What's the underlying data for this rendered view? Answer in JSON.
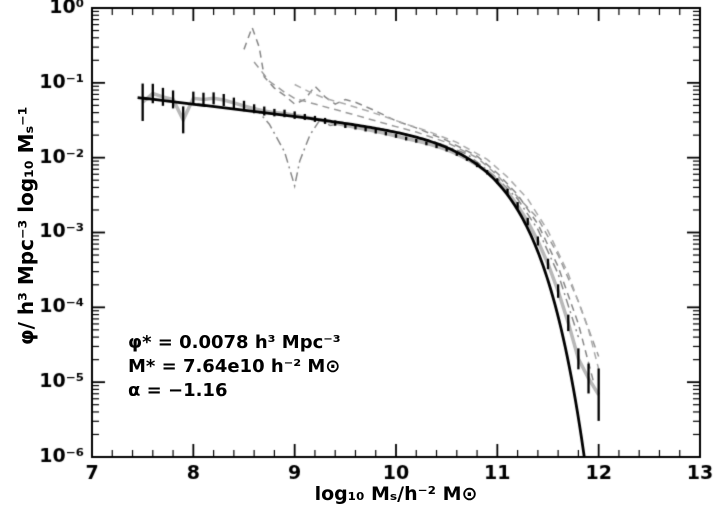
{
  "figure": {
    "background": "#ffffff",
    "axis_color": "#000000"
  },
  "annotation": {
    "phi_star": "φ* = 0.0078 h³ Mpc⁻³",
    "m_star": "M* = 7.64e10 h⁻² M⊙",
    "alpha": "α = −1.16"
  },
  "chart_data": {
    "type": "line",
    "title": "",
    "xlabel": "log₁₀ Mₛ/h⁻² M⊙",
    "ylabel": "φ/ h³ Mpc⁻³ log₁₀ Mₛ⁻¹",
    "xlim": [
      7,
      13
    ],
    "ylim": [
      1e-06,
      1
    ],
    "y_scale": "log",
    "grid": false,
    "legend": "none",
    "x_ticks": [
      {
        "v": 7,
        "label": "7"
      },
      {
        "v": 8,
        "label": "8"
      },
      {
        "v": 9,
        "label": "9"
      },
      {
        "v": 10,
        "label": "10"
      },
      {
        "v": 11,
        "label": "11"
      },
      {
        "v": 12,
        "label": "12"
      },
      {
        "v": 13,
        "label": "13"
      }
    ],
    "y_ticks": [
      {
        "exp": 0,
        "label": "10⁰"
      },
      {
        "exp": -1,
        "label": "10⁻¹"
      },
      {
        "exp": -2,
        "label": "10⁻²"
      },
      {
        "exp": -3,
        "label": "10⁻³"
      },
      {
        "exp": -4,
        "label": "10⁻⁴"
      },
      {
        "exp": -5,
        "label": "10⁻⁵"
      },
      {
        "exp": -6,
        "label": "10⁻⁶"
      }
    ],
    "schechter_fit": {
      "name": "schechter-fit",
      "phi_star": 0.0078,
      "m_star": 76400000000.0,
      "alpha": -1.16,
      "x_min": 7.45,
      "x_max": 12.3,
      "color": "#000000",
      "width": 2.8
    },
    "data_series": {
      "name": "measured-stellar-mass-function",
      "line_color": "#b8b8b8",
      "line_width": 3.5,
      "error_color": "#000000",
      "points": [
        [
          7.5,
          0.055,
          0.25
        ],
        [
          7.6,
          0.072,
          0.13
        ],
        [
          7.7,
          0.065,
          0.12
        ],
        [
          7.8,
          0.06,
          0.12
        ],
        [
          7.9,
          0.032,
          0.18
        ],
        [
          8.0,
          0.062,
          0.09
        ],
        [
          8.1,
          0.06,
          0.09
        ],
        [
          8.2,
          0.062,
          0.08
        ],
        [
          8.3,
          0.059,
          0.08
        ],
        [
          8.4,
          0.054,
          0.07
        ],
        [
          8.5,
          0.049,
          0.07
        ],
        [
          8.6,
          0.045,
          0.06
        ],
        [
          8.7,
          0.042,
          0.06
        ],
        [
          8.8,
          0.04,
          0.05
        ],
        [
          8.9,
          0.039,
          0.05
        ],
        [
          9.0,
          0.037,
          0.05
        ],
        [
          9.1,
          0.035,
          0.04
        ],
        [
          9.2,
          0.033,
          0.04
        ],
        [
          9.3,
          0.031,
          0.04
        ],
        [
          9.4,
          0.029,
          0.035
        ],
        [
          9.5,
          0.027,
          0.035
        ],
        [
          9.6,
          0.0255,
          0.03
        ],
        [
          9.7,
          0.024,
          0.03
        ],
        [
          9.8,
          0.0225,
          0.03
        ],
        [
          9.9,
          0.021,
          0.025
        ],
        [
          10.0,
          0.0195,
          0.025
        ],
        [
          10.1,
          0.018,
          0.025
        ],
        [
          10.2,
          0.0168,
          0.025
        ],
        [
          10.3,
          0.0155,
          0.025
        ],
        [
          10.4,
          0.0142,
          0.025
        ],
        [
          10.5,
          0.0128,
          0.025
        ],
        [
          10.6,
          0.0112,
          0.025
        ],
        [
          10.7,
          0.0096,
          0.025
        ],
        [
          10.8,
          0.008,
          0.03
        ],
        [
          10.9,
          0.0064,
          0.03
        ],
        [
          11.0,
          0.0049,
          0.035
        ],
        [
          11.1,
          0.0035,
          0.04
        ],
        [
          11.2,
          0.0023,
          0.045
        ],
        [
          11.3,
          0.0014,
          0.05
        ],
        [
          11.4,
          0.00077,
          0.06
        ],
        [
          11.5,
          0.00038,
          0.07
        ],
        [
          11.6,
          0.000165,
          0.09
        ],
        [
          11.7,
          6.2e-05,
          0.11
        ],
        [
          11.8,
          2.05e-05,
          0.14
        ],
        [
          11.9,
          1.12e-05,
          0.2
        ],
        [
          12.0,
          6.8e-06,
          0.35
        ]
      ]
    },
    "comparison_series": [
      {
        "name": "comparison-1",
        "style": "dashed",
        "color": "#888888",
        "points": [
          [
            8.5,
            0.28
          ],
          [
            8.58,
            0.55
          ],
          [
            8.65,
            0.3
          ],
          [
            8.7,
            0.12
          ],
          [
            8.8,
            0.085
          ],
          [
            8.9,
            0.068
          ],
          [
            9.0,
            0.052
          ],
          [
            9.1,
            0.06
          ],
          [
            9.2,
            0.09
          ],
          [
            9.3,
            0.065
          ],
          [
            9.4,
            0.052
          ],
          [
            9.5,
            0.06
          ],
          [
            9.6,
            0.055
          ],
          [
            9.8,
            0.042
          ],
          [
            10.0,
            0.031
          ],
          [
            10.2,
            0.025
          ],
          [
            10.5,
            0.017
          ],
          [
            10.8,
            0.0105
          ],
          [
            11.0,
            0.0062
          ],
          [
            11.2,
            0.0032
          ],
          [
            11.4,
            0.0013
          ],
          [
            11.6,
            0.00035
          ],
          [
            11.8,
            6e-05
          ],
          [
            11.95,
            1e-05
          ]
        ]
      },
      {
        "name": "comparison-2",
        "style": "dashed",
        "color": "#999999",
        "points": [
          [
            8.6,
            0.19
          ],
          [
            8.75,
            0.105
          ],
          [
            8.9,
            0.075
          ],
          [
            9.0,
            0.062
          ],
          [
            9.2,
            0.052
          ],
          [
            9.4,
            0.044
          ],
          [
            9.6,
            0.037
          ],
          [
            9.8,
            0.031
          ],
          [
            10.0,
            0.026
          ],
          [
            10.2,
            0.022
          ],
          [
            10.5,
            0.016
          ],
          [
            10.8,
            0.01
          ],
          [
            11.0,
            0.0058
          ],
          [
            11.2,
            0.003
          ],
          [
            11.4,
            0.00155
          ],
          [
            11.6,
            0.0005
          ],
          [
            11.8,
            0.00012
          ],
          [
            12.0,
            2.2e-05
          ]
        ]
      },
      {
        "name": "comparison-3",
        "style": "dashdot",
        "color": "#888888",
        "points": [
          [
            8.6,
            0.048
          ],
          [
            8.75,
            0.028
          ],
          [
            8.9,
            0.012
          ],
          [
            9.0,
            0.0042
          ],
          [
            9.05,
            0.009
          ],
          [
            9.15,
            0.02
          ],
          [
            9.25,
            0.032
          ],
          [
            9.35,
            0.027
          ],
          [
            9.5,
            0.029
          ],
          [
            9.7,
            0.026
          ],
          [
            9.9,
            0.0235
          ],
          [
            10.1,
            0.0205
          ],
          [
            10.4,
            0.016
          ],
          [
            10.7,
            0.0112
          ],
          [
            11.0,
            0.0053
          ],
          [
            11.2,
            0.0028
          ],
          [
            11.4,
            0.0011
          ],
          [
            11.6,
            0.00028
          ],
          [
            11.8,
            4e-05
          ]
        ]
      },
      {
        "name": "comparison-4",
        "style": "dashed",
        "color": "#aaaaaa",
        "points": [
          [
            9.0,
            0.095
          ],
          [
            9.15,
            0.075
          ],
          [
            9.3,
            0.062
          ],
          [
            9.5,
            0.052
          ],
          [
            9.7,
            0.043
          ],
          [
            9.9,
            0.035
          ],
          [
            10.1,
            0.028
          ],
          [
            10.3,
            0.023
          ],
          [
            10.6,
            0.016
          ],
          [
            10.9,
            0.0095
          ],
          [
            11.1,
            0.0055
          ],
          [
            11.3,
            0.0028
          ],
          [
            11.5,
            0.00105
          ],
          [
            11.7,
            0.00028
          ],
          [
            11.9,
            5e-05
          ],
          [
            12.0,
            1.5e-05
          ]
        ]
      }
    ]
  }
}
